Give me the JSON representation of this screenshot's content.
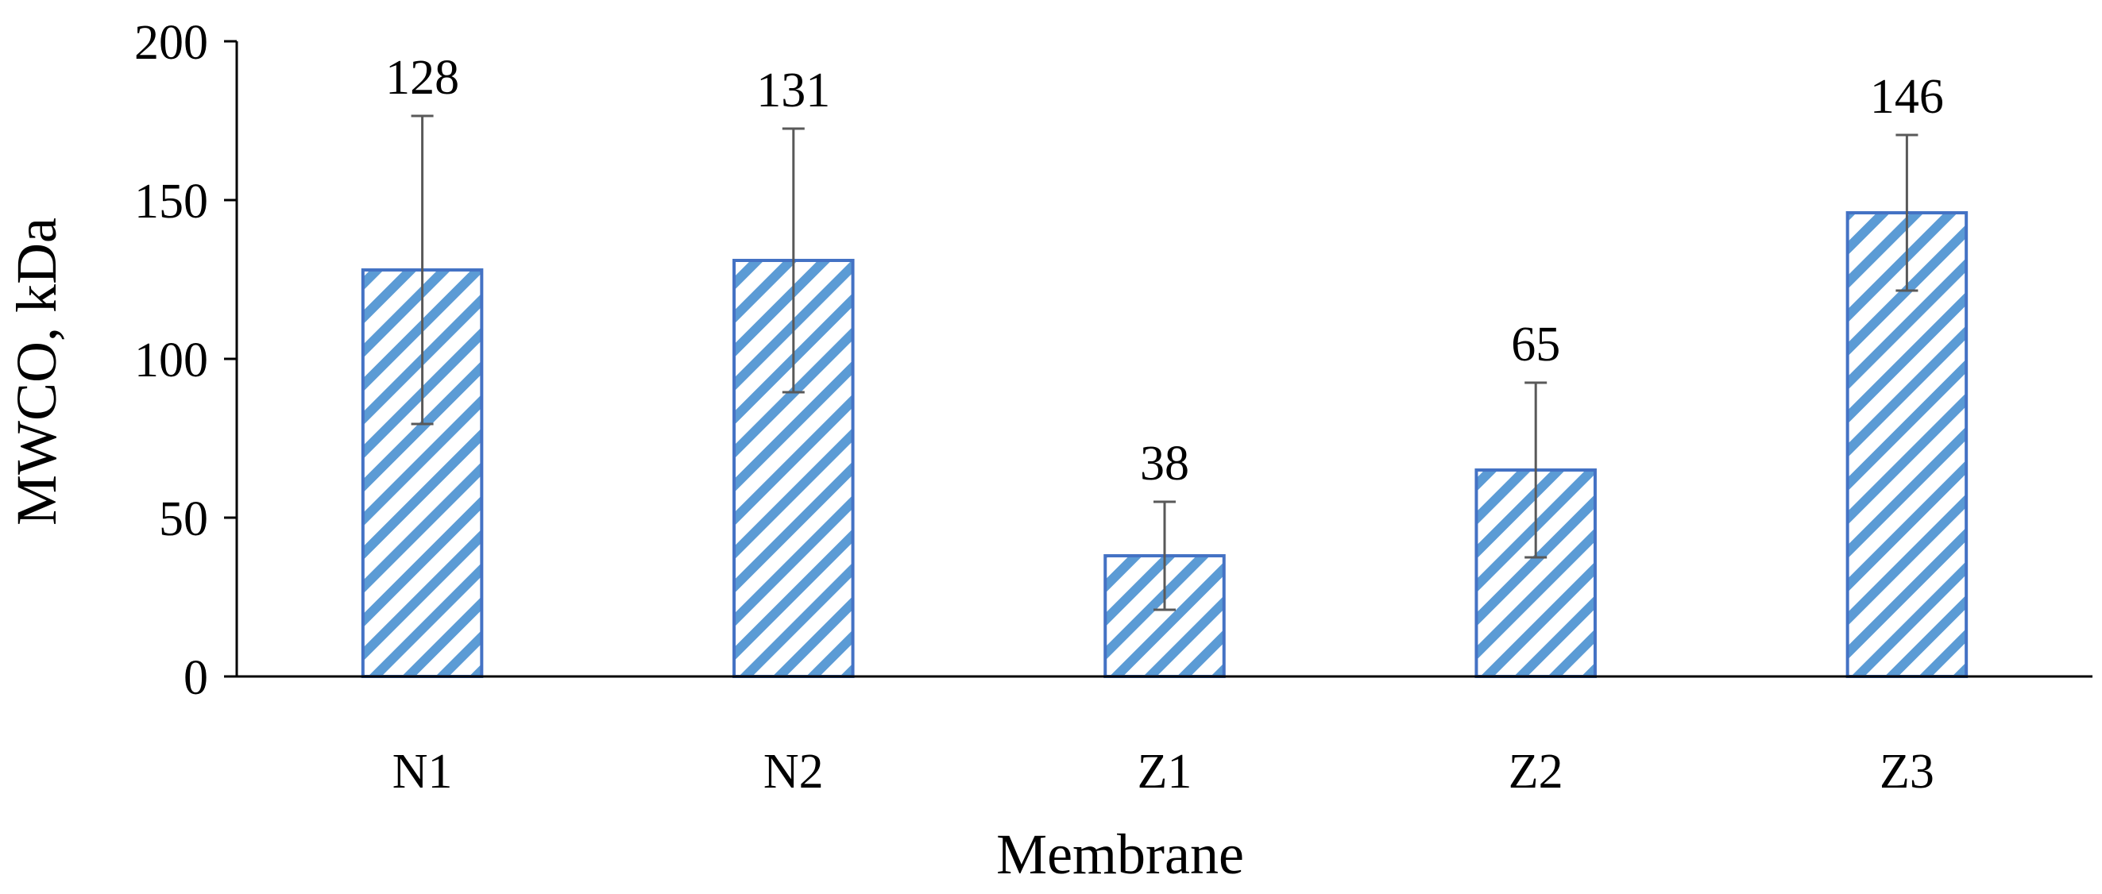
{
  "chart_data": {
    "type": "bar",
    "categories": [
      "N1",
      "N2",
      "Z1",
      "Z2",
      "Z3"
    ],
    "values": [
      128,
      131,
      38,
      65,
      146
    ],
    "errors": [
      48.5,
      41.5,
      17,
      27.5,
      24.5
    ],
    "data_labels": [
      "128",
      "131",
      "38",
      "65",
      "146"
    ],
    "y_ticks": [
      0,
      50,
      100,
      150,
      200
    ],
    "ylim": [
      0,
      200
    ],
    "xlabel": "Membrane",
    "ylabel": "MWCO, kDa",
    "grid": false,
    "legend": "none",
    "bar_fill": "#5b9bd5",
    "bar_stroke": "#4472c4",
    "error_color": "#595959"
  }
}
